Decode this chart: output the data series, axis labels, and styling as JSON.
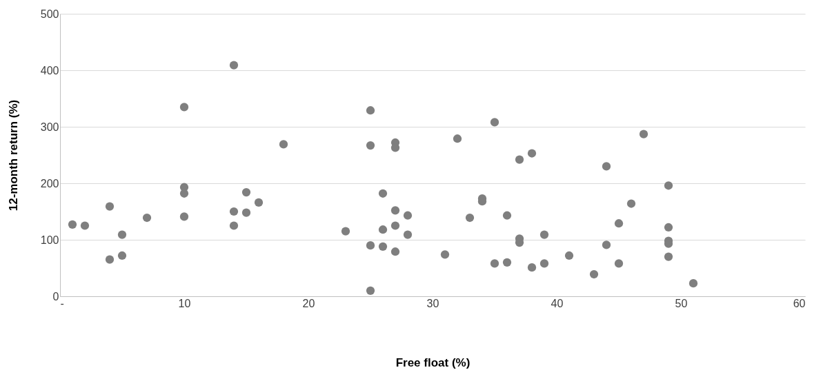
{
  "chart_data": {
    "type": "scatter",
    "xlabel": "Free float (%)",
    "ylabel": "12-month return (%)",
    "x": [
      1,
      2,
      4,
      4,
      5,
      5,
      7,
      10,
      10,
      10,
      10,
      14,
      14,
      14,
      15,
      15,
      16,
      18,
      23,
      25,
      25,
      25,
      25,
      26,
      26,
      26,
      27,
      27,
      27,
      27,
      27,
      28,
      28,
      31,
      32,
      33,
      34,
      34,
      35,
      35,
      36,
      36,
      37,
      37,
      37,
      38,
      38,
      39,
      39,
      41,
      43,
      44,
      44,
      45,
      45,
      46,
      47,
      49,
      49,
      49,
      49,
      49,
      51
    ],
    "series": [
      {
        "color": "#7f7f7f",
        "values": [
          127,
          125,
          159,
          65,
          109,
          72,
          139,
          335,
          193,
          182,
          141,
          409,
          150,
          125,
          184,
          148,
          166,
          269,
          115,
          329,
          267,
          90,
          10,
          182,
          118,
          88,
          272,
          263,
          152,
          125,
          79,
          143,
          109,
          74,
          279,
          139,
          173,
          168,
          308,
          58,
          143,
          60,
          242,
          102,
          95,
          253,
          51,
          109,
          58,
          72,
          39,
          230,
          91,
          129,
          58,
          164,
          287,
          196,
          122,
          98,
          93,
          70,
          23
        ]
      }
    ],
    "xlim": [
      0,
      60
    ],
    "xticks": [
      {
        "value": 0,
        "label": "-"
      },
      10,
      20,
      30,
      40,
      50,
      60
    ],
    "ylim": [
      0,
      500
    ],
    "yticks": [
      0,
      100,
      200,
      300,
      400,
      500
    ],
    "grid": "y",
    "marker": "circle",
    "legend": false
  }
}
